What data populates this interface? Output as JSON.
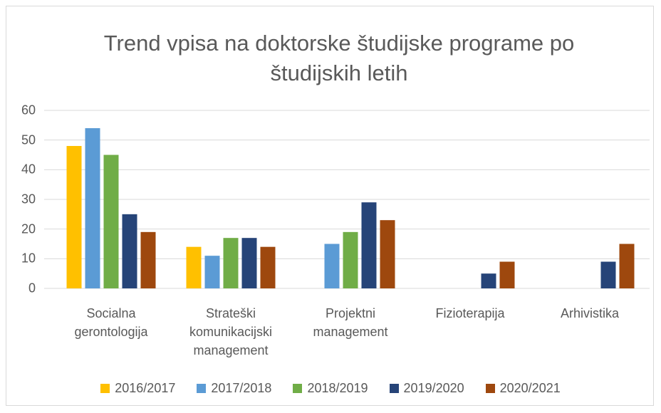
{
  "chart_data": {
    "type": "bar",
    "title": "Trend vpisa na doktorske študijske programe po študijskih letih",
    "categories": [
      "Socialna gerontologija",
      "Strateški komunikacijski management",
      "Projektni management",
      "Fizioterapija",
      "Arhivistika"
    ],
    "series": [
      {
        "name": "2016/2017",
        "color": "#ffc000",
        "values": [
          48,
          14,
          null,
          null,
          null
        ]
      },
      {
        "name": "2017/2018",
        "color": "#5b9bd5",
        "values": [
          54,
          11,
          15,
          null,
          null
        ]
      },
      {
        "name": "2018/2019",
        "color": "#70ad47",
        "values": [
          45,
          17,
          19,
          null,
          null
        ]
      },
      {
        "name": "2019/2020",
        "color": "#264478",
        "values": [
          25,
          17,
          29,
          5,
          9
        ]
      },
      {
        "name": "2020/2021",
        "color": "#9e480e",
        "values": [
          19,
          14,
          23,
          9,
          15
        ]
      }
    ],
    "ylim": [
      0,
      60
    ],
    "yticks": [
      0,
      10,
      20,
      30,
      40,
      50,
      60
    ],
    "grid": true,
    "legend": "bottom"
  }
}
